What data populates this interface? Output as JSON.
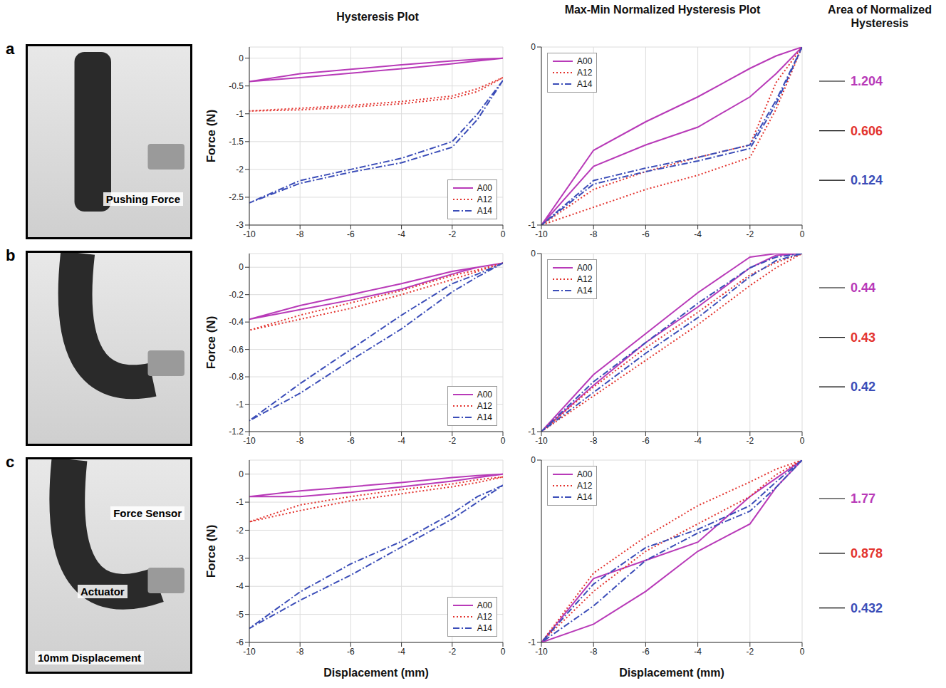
{
  "column_headers": [
    "Hysteresis Plot",
    "Max-Min Normalized Hysteresis Plot",
    "Area of Normalized Hysteresis"
  ],
  "panels": [
    {
      "letter": "a",
      "photo_labels": [
        "Pushing Force"
      ],
      "areas": [
        {
          "name": "A00",
          "value": 1.204,
          "color": "#b83ab8"
        },
        {
          "name": "A12",
          "value": 0.606,
          "color": "#e3342f"
        },
        {
          "name": "A14",
          "value": 0.124,
          "color": "#3b4db8"
        }
      ]
    },
    {
      "letter": "b",
      "photo_labels": [],
      "areas": [
        {
          "name": "A00",
          "value": 0.44,
          "color": "#b83ab8"
        },
        {
          "name": "A12",
          "value": 0.43,
          "color": "#e3342f"
        },
        {
          "name": "A14",
          "value": 0.42,
          "color": "#3b4db8"
        }
      ]
    },
    {
      "letter": "c",
      "photo_labels": [
        "Force Sensor",
        "Actuator",
        "10mm Displacement"
      ],
      "areas": [
        {
          "name": "A00",
          "value": 1.77,
          "color": "#b83ab8"
        },
        {
          "name": "A12",
          "value": 0.878,
          "color": "#e3342f"
        },
        {
          "name": "A14",
          "value": 0.432,
          "color": "#3b4db8"
        }
      ]
    }
  ],
  "chart_data": [
    {
      "type": "line",
      "y_label": "Force (N)",
      "xlim": [
        -10,
        0
      ],
      "xticks": [
        -10,
        -8,
        -6,
        -4,
        -2,
        0
      ],
      "ylim": [
        -3,
        0.2
      ],
      "yticks": [
        -3,
        -2.5,
        -2,
        -1.5,
        -1,
        -0.5,
        0
      ],
      "grid": true,
      "legend": "lower right",
      "series": [
        {
          "name": "A00",
          "color": "#b83ab8",
          "line_style": "solid",
          "x": [
            0,
            -1,
            -2,
            -4,
            -6,
            -8,
            -10,
            -8,
            -6,
            -4,
            -2,
            -1,
            0
          ],
          "values": [
            0,
            -0.02,
            -0.05,
            -0.12,
            -0.2,
            -0.28,
            -0.42,
            -0.35,
            -0.27,
            -0.19,
            -0.1,
            -0.05,
            0
          ]
        },
        {
          "name": "A12",
          "color": "#e3342f",
          "line_style": "dotted",
          "x": [
            0,
            -1,
            -2,
            -4,
            -6,
            -8,
            -10,
            -8,
            -6,
            -4,
            -2,
            -1,
            0
          ],
          "values": [
            -0.35,
            -0.55,
            -0.68,
            -0.78,
            -0.85,
            -0.9,
            -0.95,
            -0.93,
            -0.88,
            -0.82,
            -0.72,
            -0.6,
            -0.35
          ]
        },
        {
          "name": "A14",
          "color": "#3b4db8",
          "line_style": "dashdot",
          "x": [
            0,
            -1,
            -2,
            -4,
            -6,
            -8,
            -10,
            -8,
            -6,
            -4,
            -2,
            -1,
            0
          ],
          "values": [
            -0.4,
            -1.0,
            -1.5,
            -1.8,
            -2.0,
            -2.2,
            -2.6,
            -2.25,
            -2.05,
            -1.88,
            -1.6,
            -1.1,
            -0.4
          ]
        }
      ]
    },
    {
      "type": "line",
      "xlim": [
        -10,
        0
      ],
      "xticks": [
        -10,
        -8,
        -6,
        -4,
        -2,
        0
      ],
      "ylim": [
        -1,
        0
      ],
      "yticks": [
        -1,
        0
      ],
      "grid": true,
      "legend": "upper left",
      "series": [
        {
          "name": "A00",
          "color": "#b83ab8",
          "line_style": "solid",
          "x": [
            0,
            -1,
            -2,
            -4,
            -6,
            -8,
            -10,
            -8,
            -6,
            -4,
            -2,
            -1,
            0
          ],
          "values": [
            0,
            -0.05,
            -0.12,
            -0.28,
            -0.42,
            -0.58,
            -1,
            -0.67,
            -0.55,
            -0.45,
            -0.28,
            -0.15,
            0
          ]
        },
        {
          "name": "A12",
          "color": "#e3342f",
          "line_style": "dotted",
          "x": [
            0,
            -1,
            -2,
            -4,
            -6,
            -8,
            -10,
            -8,
            -6,
            -4,
            -2,
            -1,
            0
          ],
          "values": [
            0,
            -0.2,
            -0.55,
            -0.62,
            -0.7,
            -0.8,
            -1,
            -0.9,
            -0.8,
            -0.72,
            -0.62,
            -0.35,
            0
          ]
        },
        {
          "name": "A14",
          "color": "#3b4db8",
          "line_style": "dashdot",
          "x": [
            0,
            -1,
            -2,
            -4,
            -6,
            -8,
            -10,
            -8,
            -6,
            -4,
            -2,
            -1,
            0
          ],
          "values": [
            0,
            -0.3,
            -0.55,
            -0.62,
            -0.68,
            -0.75,
            -1,
            -0.77,
            -0.7,
            -0.64,
            -0.57,
            -0.32,
            0
          ]
        }
      ]
    },
    {
      "type": "line",
      "y_label": "Force (N)",
      "xlim": [
        -10,
        0
      ],
      "xticks": [
        -10,
        -8,
        -6,
        -4,
        -2,
        0
      ],
      "ylim": [
        -1.2,
        0.1
      ],
      "yticks": [
        -1.2,
        -1,
        -0.8,
        -0.6,
        -0.4,
        -0.2,
        0
      ],
      "grid": true,
      "legend": "lower right",
      "series": [
        {
          "name": "A00",
          "color": "#b83ab8",
          "line_style": "solid",
          "x": [
            0,
            -1,
            -2,
            -4,
            -6,
            -8,
            -10,
            -8,
            -6,
            -4,
            -2,
            -1,
            0
          ],
          "values": [
            0.03,
            0,
            -0.03,
            -0.12,
            -0.2,
            -0.28,
            -0.38,
            -0.31,
            -0.24,
            -0.16,
            -0.05,
            0,
            0.03
          ]
        },
        {
          "name": "A12",
          "color": "#e3342f",
          "line_style": "dotted",
          "x": [
            0,
            -1,
            -2,
            -4,
            -6,
            -8,
            -10,
            -8,
            -6,
            -4,
            -2,
            -1,
            0
          ],
          "values": [
            0.03,
            -0.02,
            -0.06,
            -0.17,
            -0.26,
            -0.35,
            -0.46,
            -0.38,
            -0.3,
            -0.2,
            -0.09,
            -0.03,
            0.03
          ]
        },
        {
          "name": "A14",
          "color": "#3b4db8",
          "line_style": "dashdot",
          "x": [
            0,
            -1,
            -2,
            -4,
            -6,
            -8,
            -10,
            -8,
            -6,
            -4,
            -2,
            -1,
            0
          ],
          "values": [
            0.03,
            -0.05,
            -0.12,
            -0.35,
            -0.6,
            -0.85,
            -1.12,
            -0.92,
            -0.68,
            -0.45,
            -0.18,
            -0.07,
            0.03
          ]
        }
      ]
    },
    {
      "type": "line",
      "xlim": [
        -10,
        0
      ],
      "xticks": [
        -10,
        -8,
        -6,
        -4,
        -2,
        0
      ],
      "ylim": [
        -1,
        0
      ],
      "yticks": [
        -1,
        0
      ],
      "grid": true,
      "legend": "upper left",
      "series": [
        {
          "name": "A00",
          "color": "#b83ab8",
          "line_style": "solid",
          "x": [
            0,
            -1,
            -2,
            -4,
            -6,
            -8,
            -10,
            -8,
            -6,
            -4,
            -2,
            -1,
            0
          ],
          "values": [
            0,
            0,
            -0.02,
            -0.22,
            -0.45,
            -0.68,
            -1,
            -0.74,
            -0.5,
            -0.3,
            -0.08,
            -0.01,
            0
          ]
        },
        {
          "name": "A12",
          "color": "#e3342f",
          "line_style": "dotted",
          "x": [
            0,
            -1,
            -2,
            -4,
            -6,
            -8,
            -10,
            -8,
            -6,
            -4,
            -2,
            -1,
            0
          ],
          "values": [
            0,
            -0.05,
            -0.12,
            -0.33,
            -0.53,
            -0.75,
            -1,
            -0.8,
            -0.6,
            -0.4,
            -0.18,
            -0.08,
            0
          ]
        },
        {
          "name": "A14",
          "color": "#3b4db8",
          "line_style": "dashdot",
          "x": [
            0,
            -1,
            -2,
            -4,
            -6,
            -8,
            -10,
            -8,
            -6,
            -4,
            -2,
            -1,
            0
          ],
          "values": [
            0,
            -0.02,
            -0.08,
            -0.28,
            -0.5,
            -0.72,
            -1,
            -0.78,
            -0.56,
            -0.36,
            -0.13,
            -0.04,
            0
          ]
        }
      ]
    },
    {
      "type": "line",
      "x_label": "Displacement (mm)",
      "y_label": "Force (N)",
      "xlim": [
        -10,
        0
      ],
      "xticks": [
        -10,
        -8,
        -6,
        -4,
        -2,
        0
      ],
      "ylim": [
        -6,
        0.5
      ],
      "yticks": [
        -6,
        -5,
        -4,
        -3,
        -2,
        -1,
        0
      ],
      "grid": true,
      "legend": "lower right",
      "series": [
        {
          "name": "A00",
          "color": "#b83ab8",
          "line_style": "solid",
          "x": [
            0,
            -1,
            -2,
            -4,
            -6,
            -8,
            -10,
            -8,
            -6,
            -4,
            -2,
            -1,
            0
          ],
          "values": [
            0,
            -0.05,
            -0.12,
            -0.3,
            -0.45,
            -0.6,
            -0.8,
            -0.8,
            -0.65,
            -0.45,
            -0.25,
            -0.12,
            0
          ]
        },
        {
          "name": "A12",
          "color": "#e3342f",
          "line_style": "dotted",
          "x": [
            0,
            -1,
            -2,
            -4,
            -6,
            -8,
            -10,
            -8,
            -6,
            -4,
            -2,
            -1,
            0
          ],
          "values": [
            -0.1,
            -0.2,
            -0.35,
            -0.55,
            -0.8,
            -1.1,
            -1.7,
            -1.3,
            -0.95,
            -0.7,
            -0.45,
            -0.3,
            -0.1
          ]
        },
        {
          "name": "A14",
          "color": "#3b4db8",
          "line_style": "dashdot",
          "x": [
            0,
            -1,
            -2,
            -4,
            -6,
            -8,
            -10,
            -8,
            -6,
            -4,
            -2,
            -1,
            0
          ],
          "values": [
            -0.4,
            -0.8,
            -1.4,
            -2.4,
            -3.2,
            -4.2,
            -5.5,
            -4.5,
            -3.6,
            -2.6,
            -1.6,
            -1.0,
            -0.4
          ]
        }
      ]
    },
    {
      "type": "line",
      "x_label": "Displacement (mm)",
      "xlim": [
        -10,
        0
      ],
      "xticks": [
        -10,
        -8,
        -6,
        -4,
        -2,
        0
      ],
      "ylim": [
        -1,
        0
      ],
      "yticks": [
        -1,
        0
      ],
      "grid": true,
      "legend": "upper left",
      "series": [
        {
          "name": "A00",
          "color": "#b83ab8",
          "line_style": "solid",
          "x": [
            0,
            -1,
            -2,
            -4,
            -6,
            -8,
            -10,
            -8,
            -6,
            -4,
            -2,
            -1,
            0
          ],
          "values": [
            0,
            -0.1,
            -0.2,
            -0.45,
            -0.55,
            -0.65,
            -1,
            -0.9,
            -0.72,
            -0.5,
            -0.35,
            -0.15,
            0
          ]
        },
        {
          "name": "A12",
          "color": "#e3342f",
          "line_style": "dotted",
          "x": [
            0,
            -1,
            -2,
            -4,
            -6,
            -8,
            -10,
            -8,
            -6,
            -4,
            -2,
            -1,
            0
          ],
          "values": [
            0,
            -0.05,
            -0.12,
            -0.25,
            -0.42,
            -0.62,
            -1,
            -0.72,
            -0.5,
            -0.35,
            -0.2,
            -0.08,
            0
          ]
        },
        {
          "name": "A14",
          "color": "#3b4db8",
          "line_style": "dashdot",
          "x": [
            0,
            -1,
            -2,
            -4,
            -6,
            -8,
            -10,
            -8,
            -6,
            -4,
            -2,
            -1,
            0
          ],
          "values": [
            0,
            -0.12,
            -0.25,
            -0.38,
            -0.48,
            -0.68,
            -1,
            -0.8,
            -0.55,
            -0.4,
            -0.28,
            -0.15,
            0
          ]
        }
      ]
    }
  ]
}
